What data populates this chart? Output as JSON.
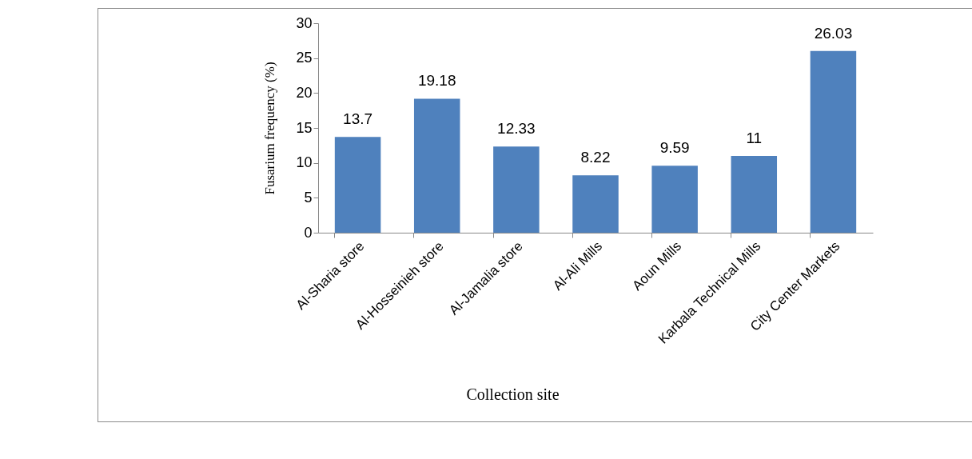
{
  "chart_data": {
    "type": "bar",
    "xlabel": "Collection site",
    "ylabel": "Fusarium  frequency (%)",
    "categories": [
      "Al-Sharia store",
      "Al-Hosseinieh store",
      "Al-Jamalia store",
      "Al-Ali Mills",
      "Aoun Mills",
      "Karbala Technical Mills",
      "City Center Markets"
    ],
    "values": [
      13.7,
      19.18,
      12.33,
      8.22,
      9.59,
      11,
      26.03
    ],
    "color": "#4f81bd",
    "ylim": [
      0,
      30
    ],
    "yticks": [
      0,
      5,
      10,
      15,
      20,
      25,
      30
    ],
    "data_labels": true,
    "grid": false
  }
}
